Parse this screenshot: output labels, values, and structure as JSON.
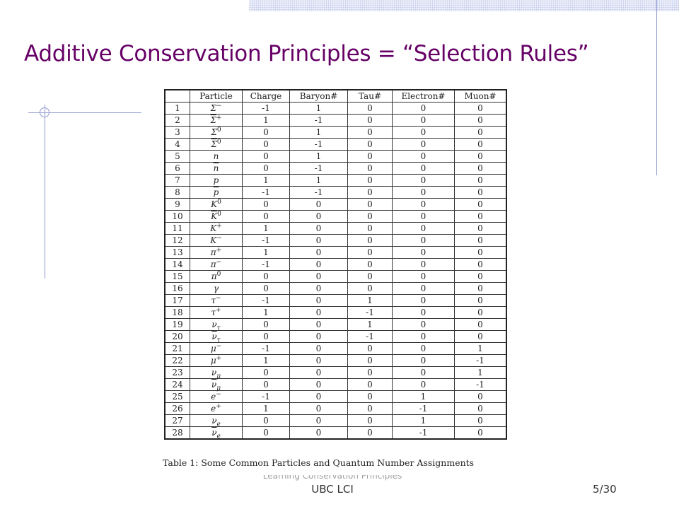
{
  "slide": {
    "title": "Additive Conservation Principles = “Selection Rules”",
    "footer_text": "Learning Conservation Principles",
    "footer_org": "UBC LCI",
    "page": "5/30"
  },
  "table": {
    "caption": "Table 1: Some Common Particles and Quantum Number Assignments",
    "headers": [
      "",
      "Particle",
      "Charge",
      "Baryon#",
      "Tau#",
      "Electron#",
      "Muon#"
    ],
    "rows": [
      {
        "n": "1",
        "base": "Σ",
        "sup": "−",
        "sub": "",
        "bar": false,
        "values": [
          "-1",
          "1",
          "0",
          "0",
          "0"
        ]
      },
      {
        "n": "2",
        "base": "Σ",
        "sup": "+",
        "sub": "",
        "bar": true,
        "values": [
          "1",
          "-1",
          "0",
          "0",
          "0"
        ]
      },
      {
        "n": "3",
        "base": "Σ",
        "sup": "0",
        "sub": "",
        "bar": false,
        "values": [
          "0",
          "1",
          "0",
          "0",
          "0"
        ]
      },
      {
        "n": "4",
        "base": "Σ",
        "sup": "0",
        "sub": "",
        "bar": true,
        "values": [
          "0",
          "-1",
          "0",
          "0",
          "0"
        ]
      },
      {
        "n": "5",
        "base": "n",
        "sup": "",
        "sub": "",
        "bar": false,
        "values": [
          "0",
          "1",
          "0",
          "0",
          "0"
        ]
      },
      {
        "n": "6",
        "base": "n",
        "sup": "",
        "sub": "",
        "bar": true,
        "values": [
          "0",
          "-1",
          "0",
          "0",
          "0"
        ]
      },
      {
        "n": "7",
        "base": "p",
        "sup": "",
        "sub": "",
        "bar": false,
        "values": [
          "1",
          "1",
          "0",
          "0",
          "0"
        ]
      },
      {
        "n": "8",
        "base": "p",
        "sup": "",
        "sub": "",
        "bar": true,
        "values": [
          "-1",
          "-1",
          "0",
          "0",
          "0"
        ]
      },
      {
        "n": "9",
        "base": "K",
        "sup": "0",
        "sub": "",
        "bar": false,
        "values": [
          "0",
          "0",
          "0",
          "0",
          "0"
        ]
      },
      {
        "n": "10",
        "base": "K",
        "sup": "0",
        "sub": "",
        "bar": true,
        "values": [
          "0",
          "0",
          "0",
          "0",
          "0"
        ]
      },
      {
        "n": "11",
        "base": "K",
        "sup": "+",
        "sub": "",
        "bar": false,
        "values": [
          "1",
          "0",
          "0",
          "0",
          "0"
        ]
      },
      {
        "n": "12",
        "base": "K",
        "sup": "−",
        "sub": "",
        "bar": false,
        "values": [
          "-1",
          "0",
          "0",
          "0",
          "0"
        ]
      },
      {
        "n": "13",
        "base": "π",
        "sup": "+",
        "sub": "",
        "bar": false,
        "values": [
          "1",
          "0",
          "0",
          "0",
          "0"
        ]
      },
      {
        "n": "14",
        "base": "π",
        "sup": "−",
        "sub": "",
        "bar": false,
        "values": [
          "-1",
          "0",
          "0",
          "0",
          "0"
        ]
      },
      {
        "n": "15",
        "base": "π",
        "sup": "0",
        "sub": "",
        "bar": false,
        "values": [
          "0",
          "0",
          "0",
          "0",
          "0"
        ]
      },
      {
        "n": "16",
        "base": "γ",
        "sup": "",
        "sub": "",
        "bar": false,
        "values": [
          "0",
          "0",
          "0",
          "0",
          "0"
        ]
      },
      {
        "n": "17",
        "base": "τ",
        "sup": "−",
        "sub": "",
        "bar": false,
        "values": [
          "-1",
          "0",
          "1",
          "0",
          "0"
        ]
      },
      {
        "n": "18",
        "base": "τ",
        "sup": "+",
        "sub": "",
        "bar": false,
        "values": [
          "1",
          "0",
          "-1",
          "0",
          "0"
        ]
      },
      {
        "n": "19",
        "base": "ν",
        "sup": "",
        "sub": "τ",
        "bar": false,
        "values": [
          "0",
          "0",
          "1",
          "0",
          "0"
        ]
      },
      {
        "n": "20",
        "base": "ν",
        "sup": "",
        "sub": "τ",
        "bar": true,
        "values": [
          "0",
          "0",
          "-1",
          "0",
          "0"
        ]
      },
      {
        "n": "21",
        "base": "μ",
        "sup": "−",
        "sub": "",
        "bar": false,
        "values": [
          "-1",
          "0",
          "0",
          "0",
          "1"
        ]
      },
      {
        "n": "22",
        "base": "μ",
        "sup": "+",
        "sub": "",
        "bar": false,
        "values": [
          "1",
          "0",
          "0",
          "0",
          "-1"
        ]
      },
      {
        "n": "23",
        "base": "ν",
        "sup": "",
        "sub": "μ",
        "bar": false,
        "values": [
          "0",
          "0",
          "0",
          "0",
          "1"
        ]
      },
      {
        "n": "24",
        "base": "ν",
        "sup": "",
        "sub": "μ",
        "bar": true,
        "values": [
          "0",
          "0",
          "0",
          "0",
          "-1"
        ]
      },
      {
        "n": "25",
        "base": "e",
        "sup": "−",
        "sub": "",
        "bar": false,
        "values": [
          "-1",
          "0",
          "0",
          "1",
          "0"
        ]
      },
      {
        "n": "26",
        "base": "e",
        "sup": "+",
        "sub": "",
        "bar": false,
        "values": [
          "1",
          "0",
          "0",
          "-1",
          "0"
        ]
      },
      {
        "n": "27",
        "base": "ν",
        "sup": "",
        "sub": "e",
        "bar": false,
        "values": [
          "0",
          "0",
          "0",
          "1",
          "0"
        ]
      },
      {
        "n": "28",
        "base": "ν",
        "sup": "",
        "sub": "e",
        "bar": true,
        "values": [
          "0",
          "0",
          "0",
          "-1",
          "0"
        ]
      }
    ]
  },
  "colors": {
    "title": "#660066",
    "accent_lines": "#8f98cf"
  }
}
